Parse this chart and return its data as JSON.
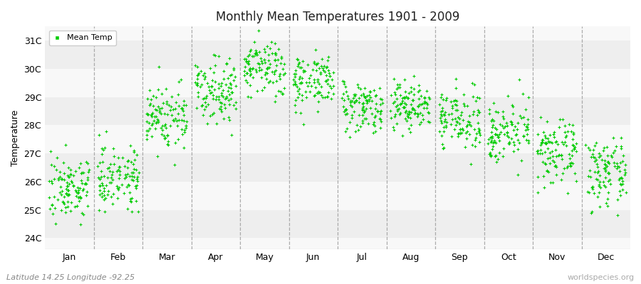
{
  "title": "Monthly Mean Temperatures 1901 - 2009",
  "ylabel": "Temperature",
  "subtitle_left": "Latitude 14.25 Longitude -92.25",
  "subtitle_right": "worldspecies.org",
  "months": [
    "Jan",
    "Feb",
    "Mar",
    "Apr",
    "May",
    "Jun",
    "Jul",
    "Aug",
    "Sep",
    "Oct",
    "Nov",
    "Dec"
  ],
  "ylim": [
    23.6,
    31.5
  ],
  "yticks": [
    24,
    25,
    26,
    27,
    28,
    29,
    30,
    31
  ],
  "ytick_labels": [
    "24C",
    "25C",
    "26C",
    "27C",
    "28C",
    "29C",
    "30C",
    "31C"
  ],
  "dot_color": "#00cc00",
  "dot_size": 5,
  "fig_bg": "#ffffff",
  "ax_bg": "#f8f8f8",
  "band_colors": [
    "#eeeeee",
    "#f8f8f8"
  ],
  "legend_label": "Mean Temp",
  "n_years": 109,
  "monthly_means": [
    25.8,
    26.2,
    28.3,
    29.3,
    30.0,
    29.6,
    28.7,
    28.7,
    28.2,
    27.8,
    27.0,
    26.3
  ],
  "monthly_stds": [
    0.55,
    0.55,
    0.6,
    0.55,
    0.52,
    0.48,
    0.45,
    0.45,
    0.5,
    0.52,
    0.55,
    0.58
  ],
  "seed": 7
}
